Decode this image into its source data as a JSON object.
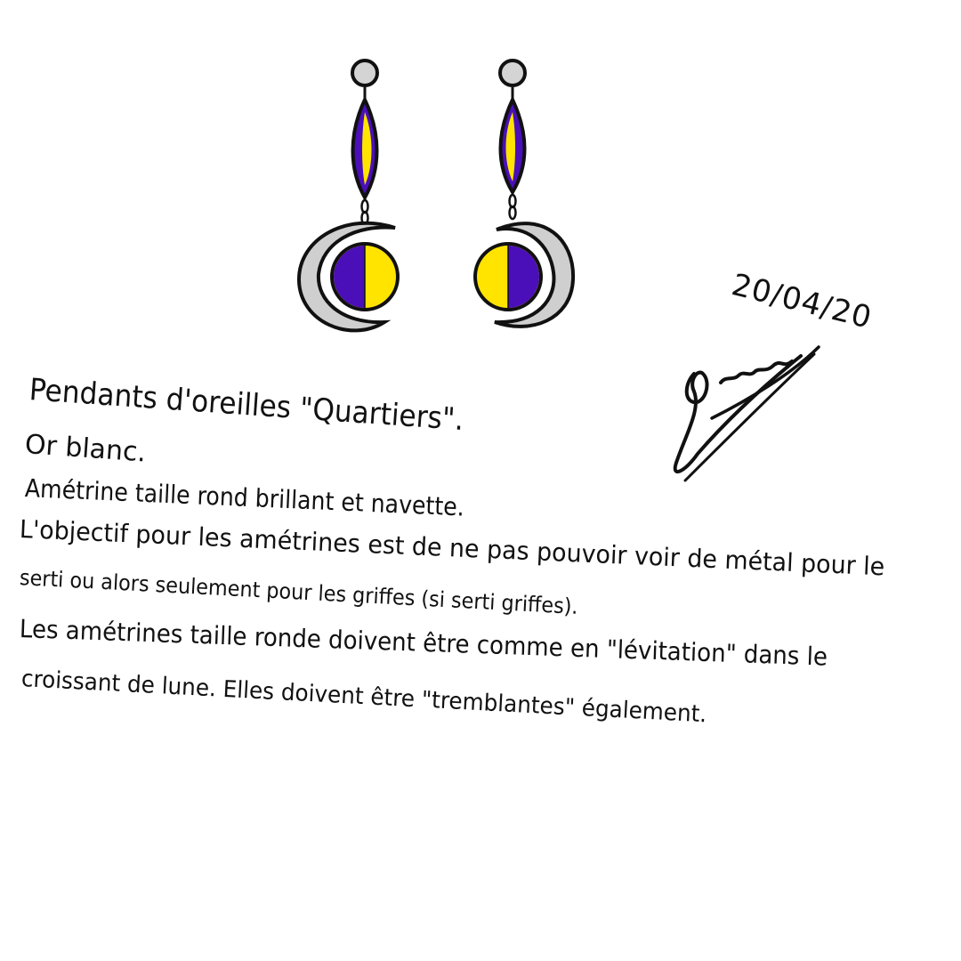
{
  "date": "20/04/20",
  "notes": {
    "title": "Pendants d'oreilles \"Quartiers\".",
    "metal": "Or blanc.",
    "stones": "Amétrine taille rond brillant et navette.",
    "goal_line1": "L'objectif pour les amétrines est de ne pas pouvoir voir de métal pour le",
    "goal_line2": "serti ou alors seulement pour les griffes (si serti griffes).",
    "levitation_line1": "Les amétrines taille ronde doivent être comme en \"lévitation\" dans le",
    "levitation_line2": "croissant de lune. Elles doivent être \"tremblantes\" également."
  },
  "colors": {
    "ink": "#111111",
    "purple": "#4a0fb8",
    "yellow": "#ffe400",
    "silver": "#cfcfcf",
    "stud": "#d4d4d4"
  }
}
